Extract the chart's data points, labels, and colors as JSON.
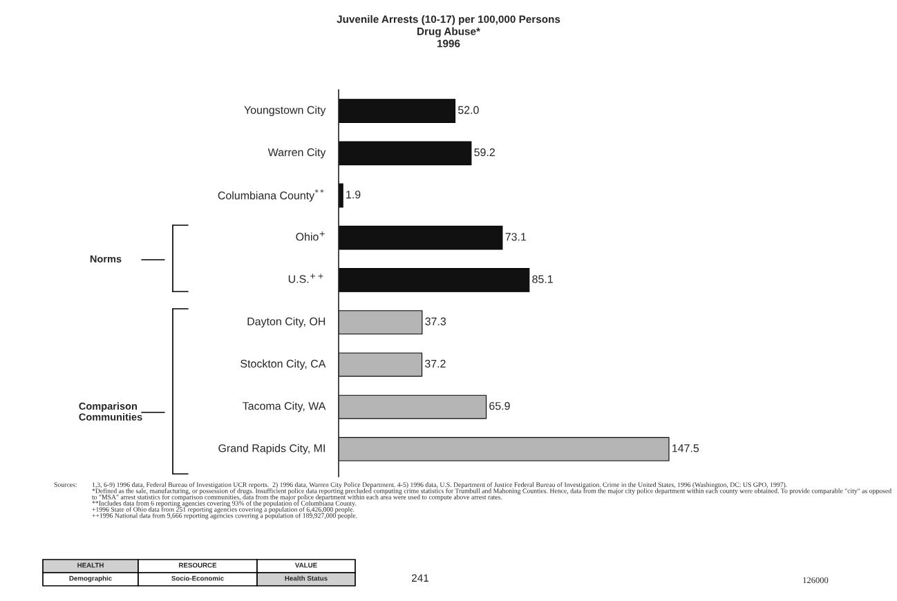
{
  "chart_data": {
    "type": "bar",
    "orientation": "horizontal",
    "title": "Juvenile Arrests (10-17) per 100,000 Persons\nDrug Abuse*\n1996",
    "categories": [
      "Youngstown City",
      "Warren City",
      "Columbiana County$^{**}$",
      "Ohio$^{+}$",
      "U.S.$^{++}$",
      "Dayton City, OH",
      "Stockton City, CA",
      "Tacoma City, WA",
      "Grand Rapids City, MI"
    ],
    "values": [
      52.0,
      59.2,
      1.9,
      73.1,
      85.1,
      37.3,
      37.2,
      65.9,
      147.5
    ],
    "colors": [
      "#111111",
      "#111111",
      "#111111",
      "#111111",
      "#111111",
      "#b5b5b5",
      "#b5b5b5",
      "#b5b5b5",
      "#b5b5b5"
    ],
    "value_labels": [
      "52.0",
      "59.2",
      "1.9",
      "73.1",
      "85.1",
      "37.3",
      "37.2",
      "65.9",
      "147.5"
    ],
    "grid": false,
    "annotations": [
      "Norms",
      "Comparison\nCommunities",
      "Sources:",
      "1,3, 6-9) 1996 data, Federal Bureau of Investigation UCR reports.  2) 1996 data, Warren City Police Department. 4-5) 1996 data, U.S. Department of Justice Federal Bureau of Investigation. Crime in the United States, 1996 (Washington, DC: US GPO, 1997).\n*Defined as the sale, manufacturing, or possession of drugs. Insufficient police data reporting precluded computing crime statistics for Trumbull and Mahoning Counties. Hence, data from the major city police department within each county were obtained. To provide comparable \"city\" as opposed to \"MSA\" arrest statistics for comparison communities, data from the major police department within each area were used to compute above arrest rates.\n**Includes data from 6 reporting agencies covering 93% of the population of Columbiana County.\n+1996 State of Ohio data from 251 reporting agencies covering a population of 6,426,000 people.\n++1996 National data from 9,666 reporting agencies covering a population of 189,927,000 people.",
      "HEALTH",
      "RESOURCE",
      "VALUE",
      "Demographic",
      "Socio-Economic",
      "Health Status",
      "241",
      "126000"
    ]
  }
}
